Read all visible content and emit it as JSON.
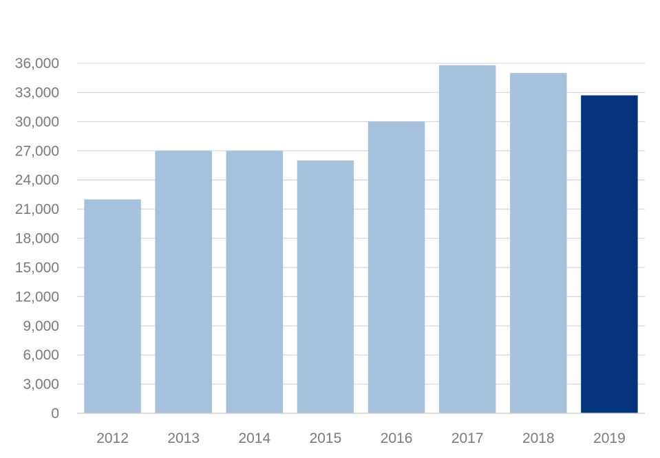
{
  "chart_data": {
    "type": "bar",
    "title": "",
    "xlabel": "",
    "ylabel": "",
    "categories": [
      "2012",
      "2013",
      "2014",
      "2015",
      "2016",
      "2017",
      "2018",
      "2019"
    ],
    "values": [
      22000,
      27000,
      27000,
      26000,
      30000,
      35800,
      35000,
      32700
    ],
    "ylim": [
      0,
      36000
    ],
    "yticks": [
      0,
      3000,
      6000,
      9000,
      12000,
      15000,
      18000,
      21000,
      24000,
      27000,
      30000,
      33000,
      36000
    ],
    "ytick_labels": [
      "0",
      "3,000",
      "6,000",
      "9,000",
      "12,000",
      "15,000",
      "18,000",
      "21,000",
      "24,000",
      "27,000",
      "30,000",
      "33,000",
      "36,000"
    ],
    "grid": true,
    "legend": "none",
    "colors": {
      "default_bar": "#a7c0dc",
      "highlight_bar": "#06347d",
      "tick_text": "#7a7a7a",
      "grid": "#d9d9d9"
    },
    "highlight_category": "2019"
  }
}
